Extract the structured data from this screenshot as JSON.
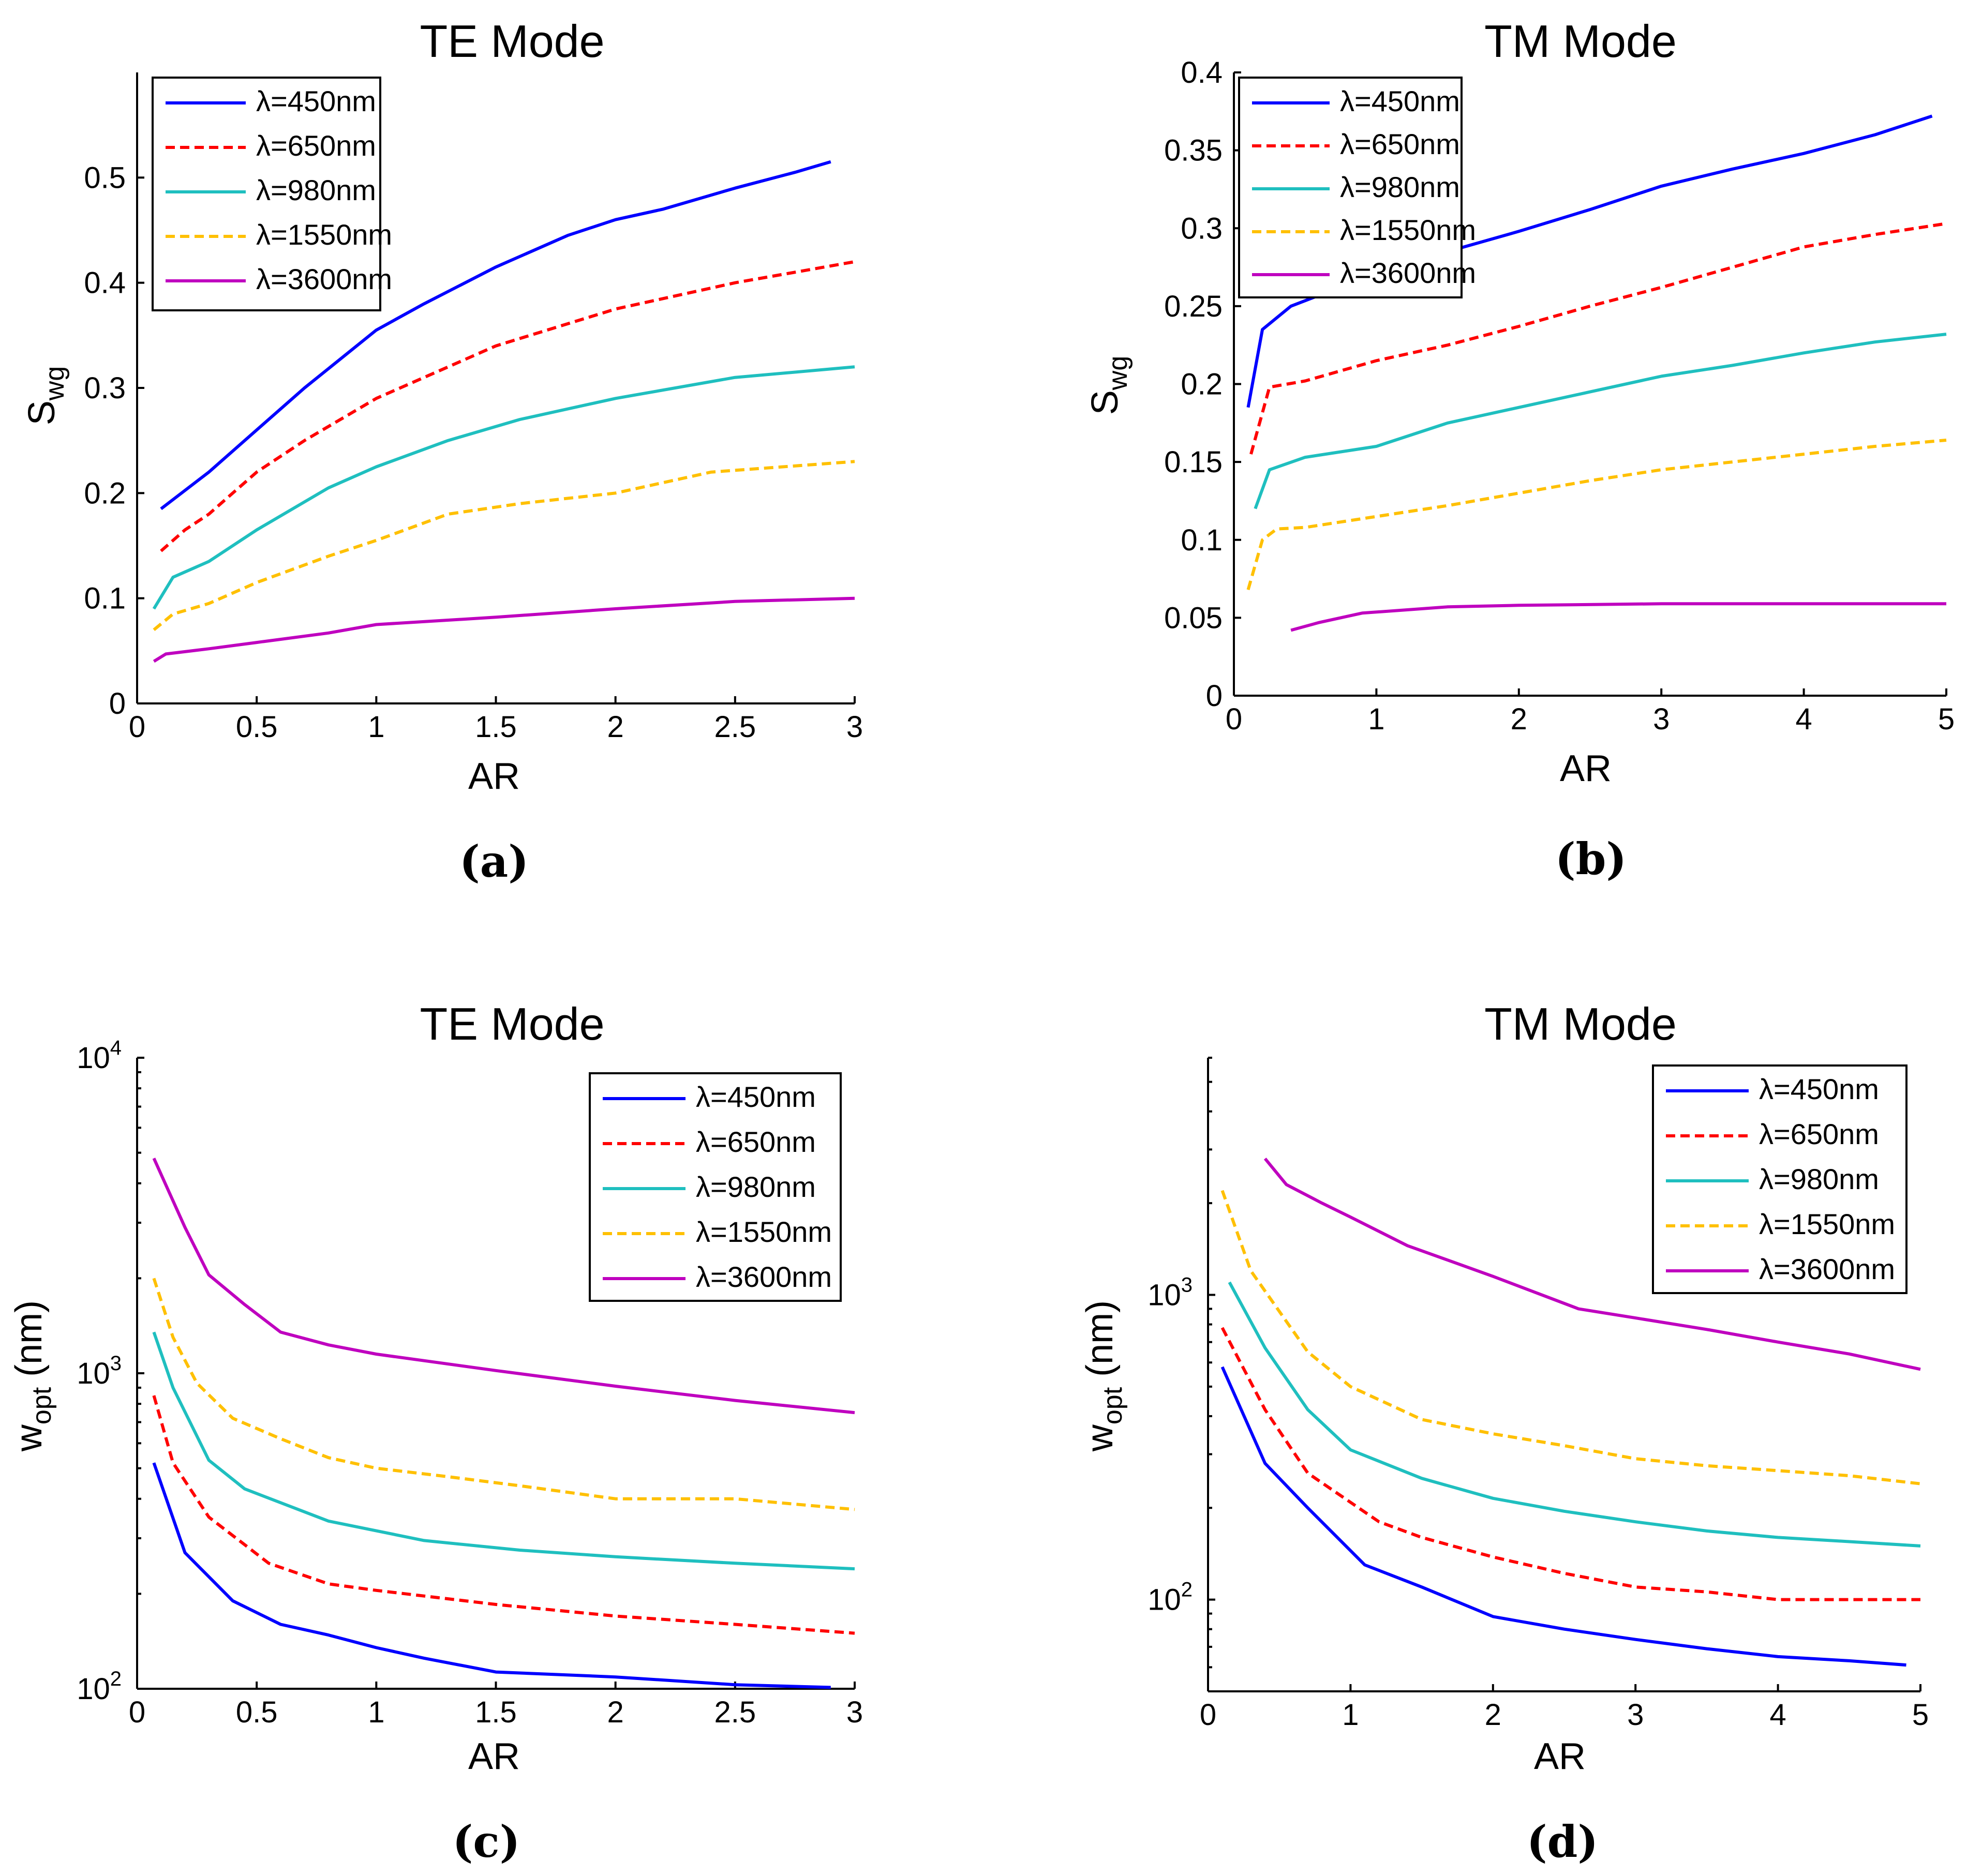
{
  "chart_data": [
    {
      "type": "line",
      "title": "TE Mode",
      "panel_label": "(a)",
      "xlabel": "AR",
      "ylabel": "S",
      "ylabel_sub": "wg",
      "yscale": "linear",
      "xlim": [
        0,
        3
      ],
      "ylim": [
        0,
        0.6
      ],
      "xticks": [
        0,
        0.5,
        1,
        1.5,
        2,
        2.5,
        3
      ],
      "xtick_labels": [
        "0",
        "0.5",
        "1",
        "1.5",
        "2",
        "2.5",
        "3"
      ],
      "yticks": [
        0,
        0.1,
        0.2,
        0.3,
        0.4,
        0.5
      ],
      "ytick_labels": [
        "0",
        "0.1",
        "0.2",
        "0.3",
        "0.4",
        "0.5"
      ],
      "legend_position": "top-left",
      "series": [
        {
          "name": "λ=450nm",
          "color": "#0000ff",
          "style": "solid",
          "x": [
            0.1,
            0.3,
            0.5,
            0.7,
            1.0,
            1.2,
            1.5,
            1.8,
            2.0,
            2.2,
            2.5,
            2.75,
            2.9
          ],
          "y": [
            0.185,
            0.22,
            0.26,
            0.3,
            0.355,
            0.38,
            0.415,
            0.445,
            0.46,
            0.47,
            0.49,
            0.505,
            0.515
          ]
        },
        {
          "name": "λ=650nm",
          "color": "#ff0000",
          "style": "dashed",
          "x": [
            0.1,
            0.2,
            0.3,
            0.4,
            0.5,
            0.7,
            1.0,
            1.2,
            1.5,
            2.0,
            2.5,
            3.0
          ],
          "y": [
            0.145,
            0.165,
            0.18,
            0.2,
            0.22,
            0.25,
            0.29,
            0.31,
            0.34,
            0.375,
            0.4,
            0.42
          ]
        },
        {
          "name": "λ=980nm",
          "color": "#1fbfbf",
          "style": "solid",
          "x": [
            0.07,
            0.15,
            0.3,
            0.5,
            0.8,
            1.0,
            1.3,
            1.6,
            2.0,
            2.5,
            3.0
          ],
          "y": [
            0.09,
            0.12,
            0.135,
            0.165,
            0.205,
            0.225,
            0.25,
            0.27,
            0.29,
            0.31,
            0.32
          ]
        },
        {
          "name": "λ=1550nm",
          "color": "#ffc000",
          "style": "dashed",
          "x": [
            0.07,
            0.15,
            0.3,
            0.5,
            0.8,
            1.0,
            1.3,
            1.6,
            2.0,
            2.4,
            2.7,
            3.0
          ],
          "y": [
            0.07,
            0.085,
            0.095,
            0.115,
            0.14,
            0.155,
            0.18,
            0.19,
            0.2,
            0.22,
            0.225,
            0.23
          ]
        },
        {
          "name": "λ=3600nm",
          "color": "#bf00bf",
          "style": "solid",
          "x": [
            0.07,
            0.12,
            0.3,
            0.5,
            0.8,
            1.0,
            1.5,
            2.0,
            2.5,
            3.0
          ],
          "y": [
            0.04,
            0.047,
            0.052,
            0.058,
            0.067,
            0.075,
            0.082,
            0.09,
            0.097,
            0.1
          ]
        }
      ]
    },
    {
      "type": "line",
      "title": "TM Mode",
      "panel_label": "(b)",
      "xlabel": "AR",
      "ylabel": "S",
      "ylabel_sub": "wg",
      "yscale": "linear",
      "xlim": [
        0,
        5
      ],
      "ylim": [
        0,
        0.4
      ],
      "xticks": [
        0,
        1,
        2,
        3,
        4,
        5
      ],
      "xtick_labels": [
        "0",
        "1",
        "2",
        "3",
        "4",
        "5"
      ],
      "yticks": [
        0,
        0.05,
        0.1,
        0.15,
        0.2,
        0.25,
        0.3,
        0.35,
        0.4
      ],
      "ytick_labels": [
        "0",
        "0.05",
        "0.1",
        "0.15",
        "0.2",
        "0.25",
        "0.3",
        "0.35",
        "0.4"
      ],
      "legend_position": "top-left",
      "series": [
        {
          "name": "λ=450nm",
          "color": "#0000ff",
          "style": "solid",
          "x": [
            0.1,
            0.2,
            0.4,
            0.6,
            1.0,
            1.5,
            2.0,
            2.5,
            3.0,
            3.5,
            4.0,
            4.5,
            4.9
          ],
          "y": [
            0.185,
            0.235,
            0.25,
            0.257,
            0.27,
            0.285,
            0.298,
            0.312,
            0.327,
            0.338,
            0.348,
            0.36,
            0.372
          ]
        },
        {
          "name": "λ=650nm",
          "color": "#ff0000",
          "style": "dashed",
          "x": [
            0.12,
            0.25,
            0.5,
            1.0,
            1.5,
            2.0,
            2.5,
            3.0,
            3.5,
            4.0,
            4.5,
            5.0
          ],
          "y": [
            0.155,
            0.198,
            0.202,
            0.215,
            0.225,
            0.237,
            0.25,
            0.262,
            0.275,
            0.288,
            0.296,
            0.303
          ]
        },
        {
          "name": "λ=980nm",
          "color": "#1fbfbf",
          "style": "solid",
          "x": [
            0.15,
            0.25,
            0.5,
            1.0,
            1.5,
            2.0,
            2.5,
            3.0,
            3.5,
            4.0,
            4.5,
            5.0
          ],
          "y": [
            0.12,
            0.145,
            0.153,
            0.16,
            0.175,
            0.185,
            0.195,
            0.205,
            0.212,
            0.22,
            0.227,
            0.232
          ]
        },
        {
          "name": "λ=1550nm",
          "color": "#ffc000",
          "style": "dashed",
          "x": [
            0.1,
            0.2,
            0.3,
            0.5,
            1.0,
            1.5,
            2.0,
            2.5,
            3.0,
            3.5,
            4.0,
            4.5,
            5.0
          ],
          "y": [
            0.068,
            0.1,
            0.107,
            0.108,
            0.115,
            0.122,
            0.13,
            0.138,
            0.145,
            0.15,
            0.155,
            0.16,
            0.164
          ]
        },
        {
          "name": "λ=3600nm",
          "color": "#bf00bf",
          "style": "solid",
          "x": [
            0.4,
            0.6,
            0.9,
            1.5,
            2.0,
            3.0,
            4.0,
            5.0
          ],
          "y": [
            0.042,
            0.047,
            0.053,
            0.057,
            0.058,
            0.059,
            0.059,
            0.059
          ]
        }
      ]
    },
    {
      "type": "line",
      "title": "TE Mode",
      "panel_label": "(c)",
      "xlabel": "AR",
      "ylabel": "w",
      "ylabel_sub": "opt",
      "ylabel_suffix": " (nm)",
      "yscale": "log",
      "xlim": [
        0,
        3
      ],
      "ylim": [
        100,
        10000
      ],
      "xticks": [
        0,
        0.5,
        1,
        1.5,
        2,
        2.5,
        3
      ],
      "xtick_labels": [
        "0",
        "0.5",
        "1",
        "1.5",
        "2",
        "2.5",
        "3"
      ],
      "yticks": [
        100,
        1000,
        10000
      ],
      "ytick_bases": [
        "10",
        "10",
        "10"
      ],
      "ytick_exponents": [
        "2",
        "3",
        "4"
      ],
      "legend_position": "top-right",
      "series": [
        {
          "name": "λ=450nm",
          "color": "#0000ff",
          "style": "solid",
          "x": [
            0.07,
            0.2,
            0.4,
            0.6,
            0.8,
            1.0,
            1.2,
            1.5,
            2.0,
            2.5,
            2.9
          ],
          "y": [
            520,
            270,
            190,
            160,
            148,
            135,
            125,
            113,
            109,
            103,
            101
          ]
        },
        {
          "name": "λ=650nm",
          "color": "#ff0000",
          "style": "dashed",
          "x": [
            0.07,
            0.15,
            0.3,
            0.55,
            0.8,
            1.0,
            1.5,
            2.0,
            2.5,
            3.0
          ],
          "y": [
            850,
            520,
            350,
            250,
            215,
            205,
            185,
            170,
            160,
            150
          ]
        },
        {
          "name": "λ=980nm",
          "color": "#1fbfbf",
          "style": "solid",
          "x": [
            0.07,
            0.15,
            0.3,
            0.45,
            0.8,
            1.2,
            1.6,
            2.0,
            2.5,
            3.0
          ],
          "y": [
            1350,
            900,
            530,
            430,
            340,
            295,
            275,
            262,
            250,
            240
          ]
        },
        {
          "name": "λ=1550nm",
          "color": "#ffc000",
          "style": "dashed",
          "x": [
            0.07,
            0.15,
            0.25,
            0.4,
            0.6,
            0.8,
            1.0,
            1.3,
            1.6,
            2.0,
            2.5,
            3.0
          ],
          "y": [
            2000,
            1300,
            930,
            720,
            620,
            540,
            500,
            470,
            440,
            400,
            400,
            370
          ]
        },
        {
          "name": "λ=3600nm",
          "color": "#bf00bf",
          "style": "solid",
          "x": [
            0.07,
            0.2,
            0.3,
            0.45,
            0.6,
            0.8,
            1.0,
            1.5,
            2.0,
            2.5,
            3.0
          ],
          "y": [
            4800,
            2900,
            2050,
            1650,
            1350,
            1230,
            1150,
            1020,
            910,
            820,
            750
          ]
        }
      ]
    },
    {
      "type": "line",
      "title": "TM Mode",
      "panel_label": "(d)",
      "xlabel": "AR",
      "ylabel": "w",
      "ylabel_sub": "opt",
      "ylabel_suffix": " (nm)",
      "yscale": "log",
      "xlim": [
        0,
        5
      ],
      "ylim": [
        50,
        6000
      ],
      "xticks": [
        0,
        1,
        2,
        3,
        4,
        5
      ],
      "xtick_labels": [
        "0",
        "1",
        "2",
        "3",
        "4",
        "5"
      ],
      "yticks": [
        100,
        1000
      ],
      "ytick_bases": [
        "10",
        "10"
      ],
      "ytick_exponents": [
        "2",
        "3"
      ],
      "legend_position": "top-right",
      "series": [
        {
          "name": "λ=450nm",
          "color": "#0000ff",
          "style": "solid",
          "x": [
            0.1,
            0.4,
            0.7,
            1.1,
            1.5,
            2.0,
            2.5,
            3.0,
            3.5,
            4.0,
            4.5,
            4.9
          ],
          "y": [
            580,
            280,
            200,
            130,
            110,
            88,
            80,
            74,
            69,
            65,
            63,
            61
          ]
        },
        {
          "name": "λ=650nm",
          "color": "#ff0000",
          "style": "dashed",
          "x": [
            0.1,
            0.4,
            0.7,
            1.2,
            1.5,
            2.0,
            2.5,
            3.0,
            3.5,
            4.0,
            4.5,
            5.0
          ],
          "y": [
            780,
            420,
            260,
            180,
            160,
            138,
            122,
            110,
            106,
            100,
            100,
            100
          ]
        },
        {
          "name": "λ=980nm",
          "color": "#1fbfbf",
          "style": "solid",
          "x": [
            0.15,
            0.4,
            0.7,
            1.0,
            1.5,
            2.0,
            2.5,
            3.0,
            3.5,
            4.0,
            4.5,
            5.0
          ],
          "y": [
            1100,
            670,
            420,
            310,
            250,
            215,
            195,
            180,
            168,
            160,
            155,
            150
          ]
        },
        {
          "name": "λ=1550nm",
          "color": "#ffc000",
          "style": "dashed",
          "x": [
            0.1,
            0.3,
            0.7,
            1.0,
            1.5,
            2.0,
            2.5,
            3.0,
            3.5,
            4.0,
            4.5,
            5.0
          ],
          "y": [
            2200,
            1200,
            650,
            500,
            390,
            350,
            320,
            290,
            275,
            265,
            255,
            240
          ]
        },
        {
          "name": "λ=3600nm",
          "color": "#bf00bf",
          "style": "solid",
          "x": [
            0.4,
            0.55,
            0.8,
            1.0,
            1.4,
            2.0,
            2.6,
            3.0,
            3.5,
            4.0,
            4.5,
            5.0
          ],
          "y": [
            2800,
            2300,
            2000,
            1800,
            1450,
            1150,
            900,
            840,
            770,
            700,
            640,
            570
          ]
        }
      ]
    }
  ]
}
